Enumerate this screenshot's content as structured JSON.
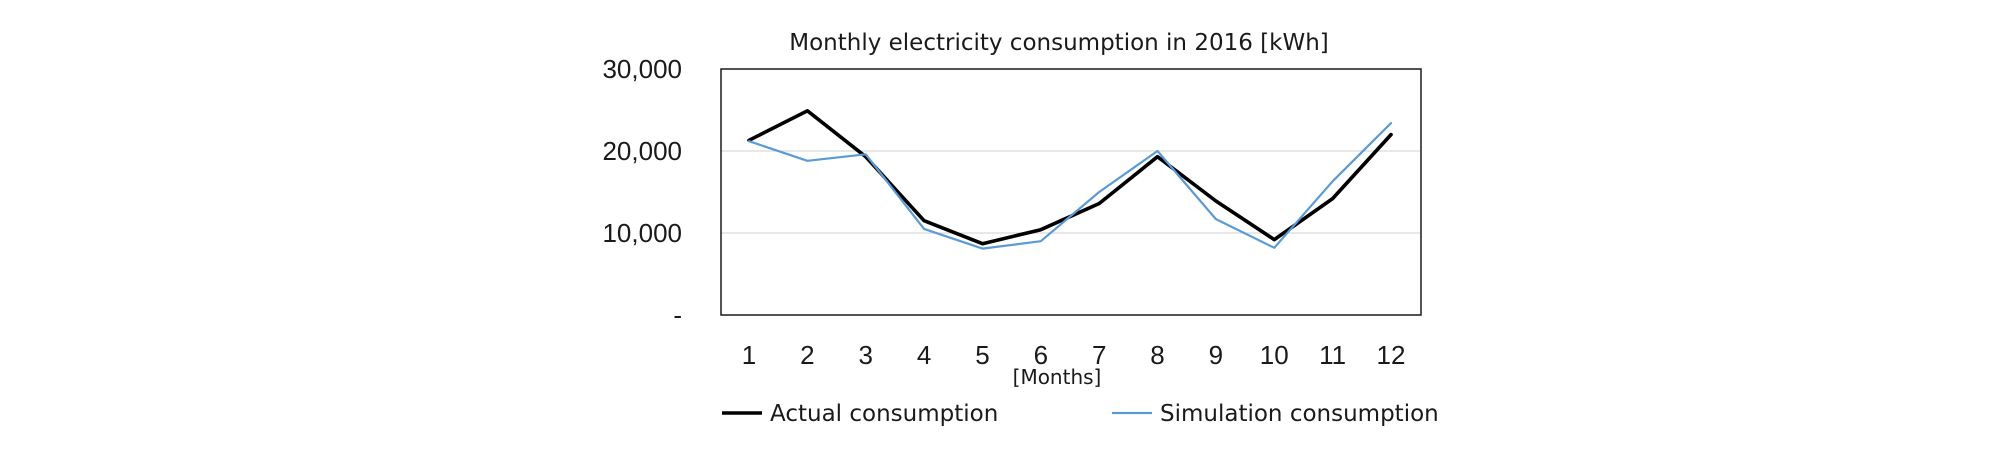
{
  "chart_data": {
    "type": "line",
    "title": "Monthly electricity consumption in 2016 [kWh]",
    "xlabel": "[Months]",
    "ylabel": "",
    "categories": [
      "1",
      "2",
      "3",
      "4",
      "5",
      "6",
      "7",
      "8",
      "9",
      "10",
      "11",
      "12"
    ],
    "y_ticks": [
      "-",
      "10,000",
      "20,000",
      "30,000"
    ],
    "ylim": [
      0,
      30000
    ],
    "grid": "horizontal",
    "legend_position": "bottom",
    "series": [
      {
        "name": "Actual consumption",
        "color": "#000000",
        "values": [
          21300,
          24900,
          19300,
          11500,
          8700,
          10400,
          13600,
          19300,
          13900,
          9200,
          14200,
          22000
        ]
      },
      {
        "name": "Simulation consumption",
        "color": "#5b9bd5",
        "values": [
          21200,
          18800,
          19600,
          10500,
          8100,
          9000,
          15000,
          20000,
          11700,
          8200,
          16300,
          23400
        ]
      }
    ]
  }
}
